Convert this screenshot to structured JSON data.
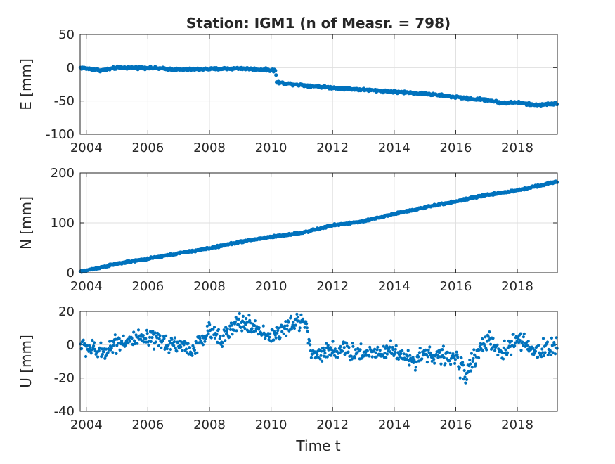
{
  "figure": {
    "title": "Station: IGM1 (n of Measr. = 798)",
    "xlabel": "Time t"
  },
  "colors": {
    "marker": "#0072BD",
    "axis": "#262626",
    "grid": "#dfdfdf",
    "background": "#ffffff"
  },
  "chart_data": [
    {
      "type": "scatter",
      "panel": "E",
      "ylabel": "E [mm]",
      "xlim": [
        2003.8,
        2019.3
      ],
      "ylim": [
        -100,
        50
      ],
      "xticks": [
        "2004",
        "2006",
        "2008",
        "2010",
        "2012",
        "2014",
        "2016",
        "2018"
      ],
      "yticks": [
        "-100",
        "-50",
        "0",
        "50"
      ],
      "grid": true,
      "n_points": 798,
      "trend_nodes": {
        "x": [
          2003.8,
          2004.5,
          2005.0,
          2006.0,
          2007.0,
          2008.0,
          2009.0,
          2010.15,
          2010.18,
          2011.0,
          2012.0,
          2013.0,
          2014.0,
          2015.0,
          2016.0,
          2016.5,
          2017.0,
          2017.5,
          2018.0,
          2018.5,
          2019.3
        ],
        "y": [
          0,
          -4,
          0,
          0,
          -3,
          -2,
          -1,
          -4,
          -22,
          -26,
          -30,
          -33,
          -36,
          -39,
          -44,
          -47,
          -48,
          -53,
          -52,
          -56,
          -54
        ]
      },
      "noise_mm": 1.5
    },
    {
      "type": "scatter",
      "panel": "N",
      "ylabel": "N [mm]",
      "xlim": [
        2003.8,
        2019.3
      ],
      "ylim": [
        0,
        200
      ],
      "xticks": [
        "2004",
        "2006",
        "2008",
        "2010",
        "2012",
        "2014",
        "2016",
        "2018"
      ],
      "yticks": [
        "0",
        "100",
        "200"
      ],
      "grid": true,
      "n_points": 798,
      "trend_nodes": {
        "x": [
          2003.8,
          2005.0,
          2006.0,
          2007.0,
          2008.0,
          2009.0,
          2010.0,
          2011.0,
          2012.0,
          2013.0,
          2014.0,
          2015.0,
          2016.0,
          2017.0,
          2018.0,
          2019.3
        ],
        "y": [
          2,
          18,
          28,
          39,
          49,
          62,
          72,
          80,
          95,
          103,
          118,
          131,
          143,
          156,
          165,
          183
        ]
      },
      "noise_mm": 1.5
    },
    {
      "type": "scatter",
      "panel": "U",
      "ylabel": "U [mm]",
      "xlim": [
        2003.8,
        2019.3
      ],
      "ylim": [
        -40,
        20
      ],
      "xticks": [
        "2004",
        "2006",
        "2008",
        "2010",
        "2012",
        "2014",
        "2016",
        "2018"
      ],
      "yticks": [
        "-40",
        "-20",
        "0",
        "20"
      ],
      "grid": true,
      "n_points": 798,
      "trend_nodes": {
        "x": [
          2003.8,
          2004.5,
          2005.0,
          2006.0,
          2007.0,
          2007.5,
          2008.0,
          2008.5,
          2009.0,
          2009.5,
          2010.0,
          2010.5,
          2011.0,
          2011.15,
          2011.3,
          2012.0,
          2013.0,
          2014.0,
          2014.5,
          2015.0,
          2015.5,
          2016.0,
          2016.3,
          2016.6,
          2017.0,
          2017.5,
          2018.0,
          2018.5,
          2019.3
        ],
        "y": [
          0,
          -5,
          2,
          3,
          0,
          -3,
          8,
          5,
          14,
          10,
          5,
          10,
          15,
          13,
          -6,
          -3,
          -5,
          -3,
          -10,
          -5,
          -7,
          -8,
          -18,
          -8,
          3,
          -6,
          4,
          -4,
          -1
        ]
      },
      "noise_mm": 4.5
    }
  ]
}
